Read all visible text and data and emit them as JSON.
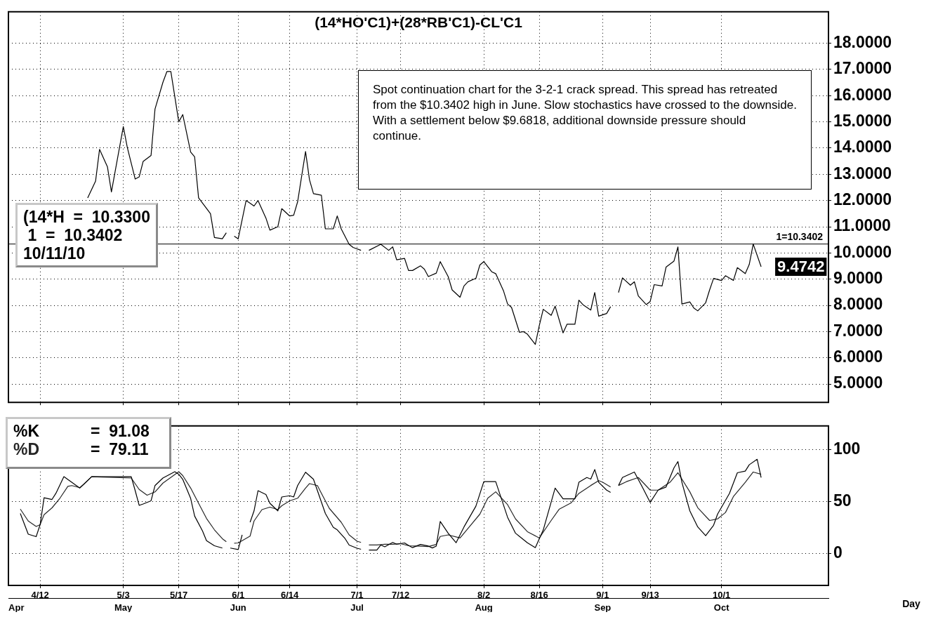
{
  "chart_data": [
    {
      "type": "line",
      "title": "(14*HO'C1)+(28*RB'C1)-CL'C1",
      "color": "#000000",
      "x": [
        "--04-24",
        "--04-26",
        "--04-27",
        "--04-29",
        "--04-30",
        "--05-03",
        "--05-04",
        "--05-06",
        "--05-07",
        "--05-08",
        "--05-10",
        "--05-11",
        "--05-13",
        "--05-14",
        "--05-15",
        "--05-17",
        "--05-18",
        "--05-20",
        "--05-21",
        "--05-22",
        "--05-25",
        "--05-26",
        "--05-28",
        "--05-29",
        "--05-30",
        "--05-31",
        "--06-01",
        "--06-03",
        "--06-04",
        "--06-05",
        "--06-06",
        "--06-08",
        "--06-09",
        "--06-11",
        "--06-12",
        "--06-14",
        "--06-15",
        "--06-16",
        "--06-18",
        "--06-19",
        "--06-20",
        "--06-22",
        "--06-23",
        "--06-25",
        "--06-26",
        "--06-27",
        "--06-29",
        "--06-30",
        "--07-02",
        "--07-03",
        "--07-04",
        "--07-07",
        "--07-09",
        "--07-10",
        "--07-11",
        "--07-13",
        "--07-14",
        "--07-15",
        "--07-17",
        "--07-18",
        "--07-19",
        "--07-21",
        "--07-22",
        "--07-24",
        "--07-25",
        "--07-27",
        "--07-28",
        "--07-29",
        "--07-31",
        "--08-01",
        "--08-02",
        "--08-04",
        "--08-05",
        "--08-07",
        "--08-08",
        "--08-09",
        "--08-11",
        "--08-12",
        "--08-13",
        "--08-15",
        "--08-16",
        "--08-17",
        "--08-19",
        "--08-20",
        "--08-22",
        "--08-23",
        "--08-25",
        "--08-26",
        "--08-27",
        "--08-29",
        "--08-30",
        "--08-31",
        "--09-02",
        "--09-03",
        "--09-04",
        "--09-05",
        "--09-06",
        "--09-08",
        "--09-09",
        "--09-10",
        "--09-12",
        "--09-13",
        "--09-14",
        "--09-16",
        "--09-17",
        "--09-19",
        "--09-20",
        "--09-21",
        "--09-23",
        "--09-24",
        "--09-25",
        "--09-27",
        "--09-28",
        "--09-29",
        "--10-01",
        "--10-02",
        "--10-04",
        "--10-05",
        "--10-07",
        "--10-08",
        "--10-09",
        "--10-11"
      ],
      "values": [
        12.1,
        12.74,
        13.95,
        13.28,
        12.33,
        14.82,
        14.03,
        12.82,
        12.9,
        13.49,
        13.72,
        15.49,
        16.51,
        16.92,
        16.92,
        15.0,
        15.28,
        13.85,
        13.67,
        12.1,
        11.5,
        10.59,
        10.54,
        10.77,
        null,
        10.64,
        10.54,
        12.0,
        11.9,
        11.79,
        12.0,
        11.33,
        10.87,
        11.0,
        11.69,
        11.41,
        11.44,
        11.95,
        13.87,
        12.79,
        12.26,
        12.2,
        10.92,
        10.92,
        11.41,
        10.92,
        10.33,
        10.21,
        10.1,
        null,
        10.1,
        10.33,
        10.1,
        10.23,
        9.74,
        9.79,
        9.33,
        9.33,
        9.51,
        9.38,
        9.1,
        9.23,
        9.67,
        9.1,
        8.59,
        8.31,
        8.74,
        8.9,
        9.03,
        9.54,
        9.67,
        9.28,
        9.21,
        8.54,
        8.05,
        7.92,
        6.97,
        7.0,
        6.9,
        6.51,
        7.23,
        7.85,
        7.62,
        7.97,
        6.95,
        7.28,
        7.28,
        8.2,
        8.03,
        7.82,
        8.49,
        7.59,
        7.69,
        7.95,
        null,
        8.49,
        9.05,
        8.77,
        8.9,
        8.36,
        8.03,
        8.15,
        8.79,
        8.74,
        9.46,
        9.69,
        10.23,
        8.05,
        8.13,
        7.9,
        7.79,
        8.1,
        8.59,
        9.03,
        8.95,
        9.13,
        8.95,
        9.44,
        9.21,
        9.56,
        10.34,
        9.4742
      ],
      "xlim": [
        "--04-04",
        "--10-28"
      ],
      "xticks": [
        {
          "value": "--04-12",
          "label": null
        },
        {
          "value": "--05-03",
          "label": null
        },
        {
          "value": "--05-17",
          "label": null
        },
        {
          "value": "--06-01",
          "label": null
        },
        {
          "value": "--06-14",
          "label": null
        },
        {
          "value": "--07-01",
          "label": null
        },
        {
          "value": "--07-12",
          "label": null
        },
        {
          "value": "--08-02",
          "label": null
        },
        {
          "value": "--08-16",
          "label": null
        },
        {
          "value": "--09-01",
          "label": null
        },
        {
          "value": "--09-13",
          "label": null
        },
        {
          "value": "--10-01",
          "label": null
        }
      ],
      "ylim": [
        4.3,
        19.2
      ],
      "yticks": [
        {
          "value": 5,
          "label": "5.0000"
        },
        {
          "value": 6,
          "label": "6.0000"
        },
        {
          "value": 7,
          "label": "7.0000"
        },
        {
          "value": 8,
          "label": "8.0000"
        },
        {
          "value": 9,
          "label": "9.0000"
        },
        {
          "value": 10,
          "label": "10.0000"
        },
        {
          "value": 11,
          "label": "11.0000"
        },
        {
          "value": 12,
          "label": "12.0000"
        },
        {
          "value": 13,
          "label": "13.0000"
        },
        {
          "value": 14,
          "label": "14.0000"
        },
        {
          "value": 15,
          "label": "15.0000"
        },
        {
          "value": 16,
          "label": "16.0000"
        },
        {
          "value": 17,
          "label": "17.0000"
        },
        {
          "value": 18,
          "label": "18.0000"
        }
      ],
      "grid": true,
      "tick_labels": "y",
      "ref_lines": [
        {
          "axis": "y",
          "value": 10.3402,
          "label": "1=10.3402"
        }
      ],
      "annotations": [
        "Spot continuation chart for the 3-2-1 crack spread. This spread has retreated from the $10.3402 high in June. Slow stochastics have crossed to the downside. With a settlement below $9.6818, additional downside pressure should continue.",
        "(14*H  =  10.3300",
        " 1  =  10.3402",
        "10/11/10",
        {
          "text": "9.4742",
          "x": "--10-11",
          "y": 9.4742
        }
      ]
    },
    {
      "type": "line",
      "xlabel": "Day",
      "series": [
        {
          "name": "%K",
          "color": "#000000",
          "x": [
            "--04-07",
            "--04-09",
            "--04-11",
            "--04-12",
            "--04-13",
            "--04-15",
            "--04-16",
            "--04-18",
            "--04-22",
            "--04-25",
            "--05-05",
            "--05-06",
            "--05-07",
            "--05-08",
            "--05-10",
            "--05-11",
            "--05-13",
            "--05-16",
            "--05-17",
            "--05-18",
            "--05-20",
            "--05-21",
            "--05-23",
            "--05-24",
            "--05-26",
            "--05-28",
            "--05-29",
            "--05-30",
            "--06-01",
            "--06-02",
            "--06-03",
            "--06-04",
            "--06-05",
            "--06-06",
            "--06-08",
            "--06-09",
            "--06-11",
            "--06-12",
            "--06-14",
            "--06-15",
            "--06-16",
            "--06-18",
            "--06-20",
            "--06-21",
            "--06-23",
            "--06-25",
            "--06-26",
            "--06-28",
            "--06-29",
            "--07-01",
            "--07-02",
            "--07-03",
            "--07-04",
            "--07-06",
            "--07-07",
            "--07-08",
            "--07-10",
            "--07-11",
            "--07-13",
            "--07-14",
            "--07-15",
            "--07-17",
            "--07-19",
            "--07-20",
            "--07-21",
            "--07-22",
            "--07-24",
            "--07-26",
            "--07-28",
            "--07-31",
            "--08-02",
            "--08-05",
            "--08-08",
            "--08-10",
            "--08-13",
            "--08-15",
            "--08-17",
            "--08-20",
            "--08-22",
            "--08-25",
            "--08-26",
            "--08-28",
            "--08-29",
            "--08-30",
            "--08-31",
            "--09-02",
            "--09-03",
            "--09-04",
            "--09-05",
            "--09-06",
            "--09-09",
            "--09-11",
            "--09-13",
            "--09-15",
            "--09-17",
            "--09-19",
            "--09-20",
            "--09-21",
            "--09-23",
            "--09-25",
            "--09-27",
            "--09-29",
            "--09-30",
            "--10-03",
            "--10-05",
            "--10-07",
            "--10-08",
            "--10-10",
            "--10-11"
          ],
          "values": [
            38.5,
            18.5,
            16.1,
            27.6,
            53.7,
            52,
            58,
            74,
            63,
            74,
            74,
            60.5,
            46.3,
            47.6,
            50.7,
            65.4,
            72.7,
            78.8,
            76.3,
            71.5,
            53,
            36,
            21.5,
            12.2,
            7.3,
            5.1,
            null,
            5.1,
            3.7,
            17.8,
            null,
            30,
            41,
            60.5,
            56.8,
            48.3,
            41,
            54.4,
            55.6,
            54.4,
            65.4,
            78.3,
            71.5,
            60.5,
            38.5,
            25.1,
            22.7,
            14.1,
            8,
            4.9,
            3.9,
            null,
            3.2,
            3.2,
            8,
            6.3,
            10.5,
            8.8,
            10,
            7.7,
            5.5,
            8.6,
            7,
            5.2,
            7,
            30.8,
            19.4,
            10.2,
            25.5,
            45.5,
            69.2,
            69.2,
            34.8,
            19.4,
            10.2,
            5.5,
            22.5,
            63,
            52.6,
            52.6,
            68.6,
            73.2,
            71.7,
            80.9,
            68.6,
            61,
            58.8,
            null,
            65.5,
            73.2,
            78.5,
            64,
            49.2,
            61,
            64,
            82.5,
            88.6,
            68.6,
            41,
            25.5,
            17,
            27.1,
            37.8,
            57.8,
            77.8,
            79.4,
            85.5,
            90.8,
            73.2
          ]
        },
        {
          "name": "%D",
          "color": "#262626",
          "x": [
            "--04-07",
            "--04-09",
            "--04-11",
            "--04-12",
            "--04-13",
            "--04-15",
            "--04-17",
            "--04-19",
            "--04-20",
            "--04-22",
            "--04-23",
            "--04-25",
            "--05-05",
            "--05-07",
            "--05-09",
            "--05-11",
            "--05-13",
            "--05-17",
            "--05-18",
            "--05-20",
            "--05-22",
            "--05-24",
            "--05-26",
            "--05-28",
            "--05-29",
            "--05-30",
            "--05-31",
            "--06-01",
            "--06-02",
            "--06-04",
            "--06-05",
            "--06-07",
            "--06-09",
            "--06-11",
            "--06-12",
            "--06-14",
            "--06-16",
            "--06-18",
            "--06-19",
            "--06-21",
            "--06-22",
            "--06-24",
            "--06-27",
            "--06-29",
            "--07-01",
            "--07-02",
            "--07-03",
            "--07-04",
            "--07-06",
            "--07-08",
            "--07-10",
            "--07-12",
            "--07-14",
            "--07-16",
            "--07-19",
            "--07-21",
            "--07-22",
            "--07-24",
            "--07-27",
            "--07-29",
            "--08-01",
            "--08-03",
            "--08-05",
            "--08-08",
            "--08-10",
            "--08-13",
            "--08-16",
            "--08-19",
            "--08-21",
            "--08-24",
            "--08-26",
            "--08-29",
            "--08-31",
            "--09-01",
            "--09-03",
            "--09-04",
            "--09-05",
            "--09-07",
            "--09-10",
            "--09-13",
            "--09-15",
            "--09-18",
            "--09-20",
            "--09-23",
            "--09-25",
            "--09-28",
            "--09-30",
            "--10-02",
            "--10-04",
            "--10-07",
            "--10-09",
            "--10-11"
          ],
          "values": [
            42.7,
            31.2,
            25.9,
            27.6,
            37.3,
            43.9,
            53.2,
            64.6,
            65.4,
            63.4,
            66.6,
            74,
            72.7,
            61.7,
            56.1,
            59.3,
            67.8,
            78.8,
            75.1,
            63,
            48.3,
            33.7,
            22.7,
            14.1,
            11.2,
            null,
            9.8,
            10,
            12.2,
            16.6,
            31.2,
            42.2,
            44.6,
            42.2,
            45.9,
            50.7,
            53.2,
            62.9,
            67.3,
            65.4,
            58,
            43.4,
            30,
            17.8,
            11.7,
            10.5,
            null,
            8,
            8,
            8.8,
            8.8,
            9.3,
            7.3,
            7,
            6.5,
            8.6,
            16.3,
            17.8,
            14.8,
            24,
            37.8,
            53.2,
            59.4,
            47,
            33.2,
            20.9,
            14.8,
            31.7,
            42.5,
            48.6,
            57.8,
            65.5,
            70.2,
            68.6,
            64,
            null,
            65.5,
            69.2,
            73.2,
            61,
            61,
            68.6,
            77.8,
            59.4,
            44,
            31.7,
            33.2,
            39.4,
            54.8,
            68.6,
            78.5,
            76.3
          ]
        }
      ],
      "xlim": [
        "--04-04",
        "--10-28"
      ],
      "xticks": [
        {
          "value": "--04-12",
          "label": "4/12"
        },
        {
          "value": "--05-03",
          "label": "5/3"
        },
        {
          "value": "--05-17",
          "label": "5/17"
        },
        {
          "value": "--06-01",
          "label": "6/1"
        },
        {
          "value": "--06-14",
          "label": "6/14"
        },
        {
          "value": "--07-01",
          "label": "7/1"
        },
        {
          "value": "--07-12",
          "label": "7/12"
        },
        {
          "value": "--08-02",
          "label": "8/2"
        },
        {
          "value": "--08-16",
          "label": "8/16"
        },
        {
          "value": "--09-01",
          "label": "9/1"
        },
        {
          "value": "--09-13",
          "label": "9/13"
        },
        {
          "value": "--10-01",
          "label": "10/1"
        }
      ],
      "x2lim": [
        "--04-04",
        "--10-28"
      ],
      "x2ticks": [
        {
          "value": "--04-06",
          "label": "Apr"
        },
        {
          "value": "--05-03",
          "label": "May"
        },
        {
          "value": "--06-01",
          "label": "Jun"
        },
        {
          "value": "--07-01",
          "label": "Jul"
        },
        {
          "value": "--08-02",
          "label": "Aug"
        },
        {
          "value": "--09-01",
          "label": "Sep"
        },
        {
          "value": "--10-01",
          "label": "Oct"
        }
      ],
      "ylim": [
        -31,
        123
      ],
      "yticks": [
        0,
        50,
        100
      ],
      "grid": true,
      "legend": "top left",
      "annotations": [
        "=  91.08",
        "=  79.11"
      ]
    }
  ]
}
